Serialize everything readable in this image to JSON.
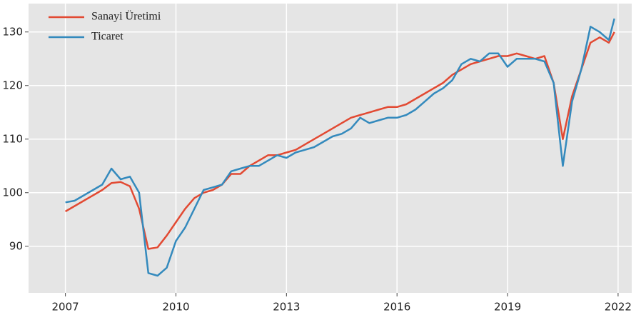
{
  "chart_data": {
    "type": "line",
    "x": [
      2007.0,
      2007.25,
      2007.5,
      2007.75,
      2008.0,
      2008.25,
      2008.5,
      2008.75,
      2009.0,
      2009.25,
      2009.5,
      2009.75,
      2010.0,
      2010.25,
      2010.5,
      2010.75,
      2011.0,
      2011.25,
      2011.5,
      2011.75,
      2012.0,
      2012.25,
      2012.5,
      2012.75,
      2013.0,
      2013.25,
      2013.5,
      2013.75,
      2014.0,
      2014.25,
      2014.5,
      2014.75,
      2015.0,
      2015.25,
      2015.5,
      2015.75,
      2016.0,
      2016.25,
      2016.5,
      2016.75,
      2017.0,
      2017.25,
      2017.5,
      2017.75,
      2018.0,
      2018.25,
      2018.5,
      2018.75,
      2019.0,
      2019.25,
      2019.5,
      2019.75,
      2020.0,
      2020.25,
      2020.5,
      2020.75,
      2021.0,
      2021.25,
      2021.5,
      2021.75,
      2021.9
    ],
    "series": [
      {
        "name": "Sanayi Üretimi",
        "color": "#e24a33",
        "values": [
          96.5,
          97.5,
          98.5,
          99.5,
          100.5,
          101.8,
          102,
          101.2,
          97,
          89.5,
          89.8,
          92,
          94.5,
          97,
          99,
          100,
          100.5,
          101.5,
          103.5,
          103.5,
          105,
          106,
          107,
          107,
          107.5,
          108,
          109,
          110,
          111,
          112,
          113,
          114,
          114.5,
          115,
          115.5,
          116,
          116,
          116.5,
          117.5,
          118.5,
          119.5,
          120.5,
          122,
          123,
          124,
          124.5,
          125,
          125.5,
          125.5,
          126,
          125.5,
          125,
          125.5,
          120.5,
          110,
          118,
          123,
          128,
          129,
          128,
          130
        ]
      },
      {
        "name": "Ticaret",
        "color": "#348abd",
        "values": [
          98.2,
          98.5,
          99.5,
          100.5,
          101.5,
          104.5,
          102.5,
          103,
          100,
          85,
          84.5,
          86,
          91,
          93.5,
          97,
          100.5,
          101,
          101.5,
          104,
          104.5,
          105,
          105,
          106,
          107,
          106.5,
          107.5,
          108,
          108.5,
          109.5,
          110.5,
          111,
          112,
          114,
          113,
          113.5,
          114,
          114,
          114.5,
          115.5,
          117,
          118.5,
          119.5,
          121,
          124,
          125,
          124.5,
          126,
          126,
          123.5,
          125,
          125,
          125,
          124.5,
          120.5,
          105,
          117,
          123,
          131,
          130,
          128.5,
          132.5
        ]
      }
    ],
    "xlim": [
      2006.0,
      2022.37
    ],
    "xticks": [
      2007,
      2010,
      2013,
      2016,
      2019,
      2022
    ],
    "ylim": [
      81.3,
      135.3
    ],
    "yticks": [
      90,
      100,
      110,
      120,
      130
    ],
    "grid": true,
    "legend": "upper left"
  }
}
